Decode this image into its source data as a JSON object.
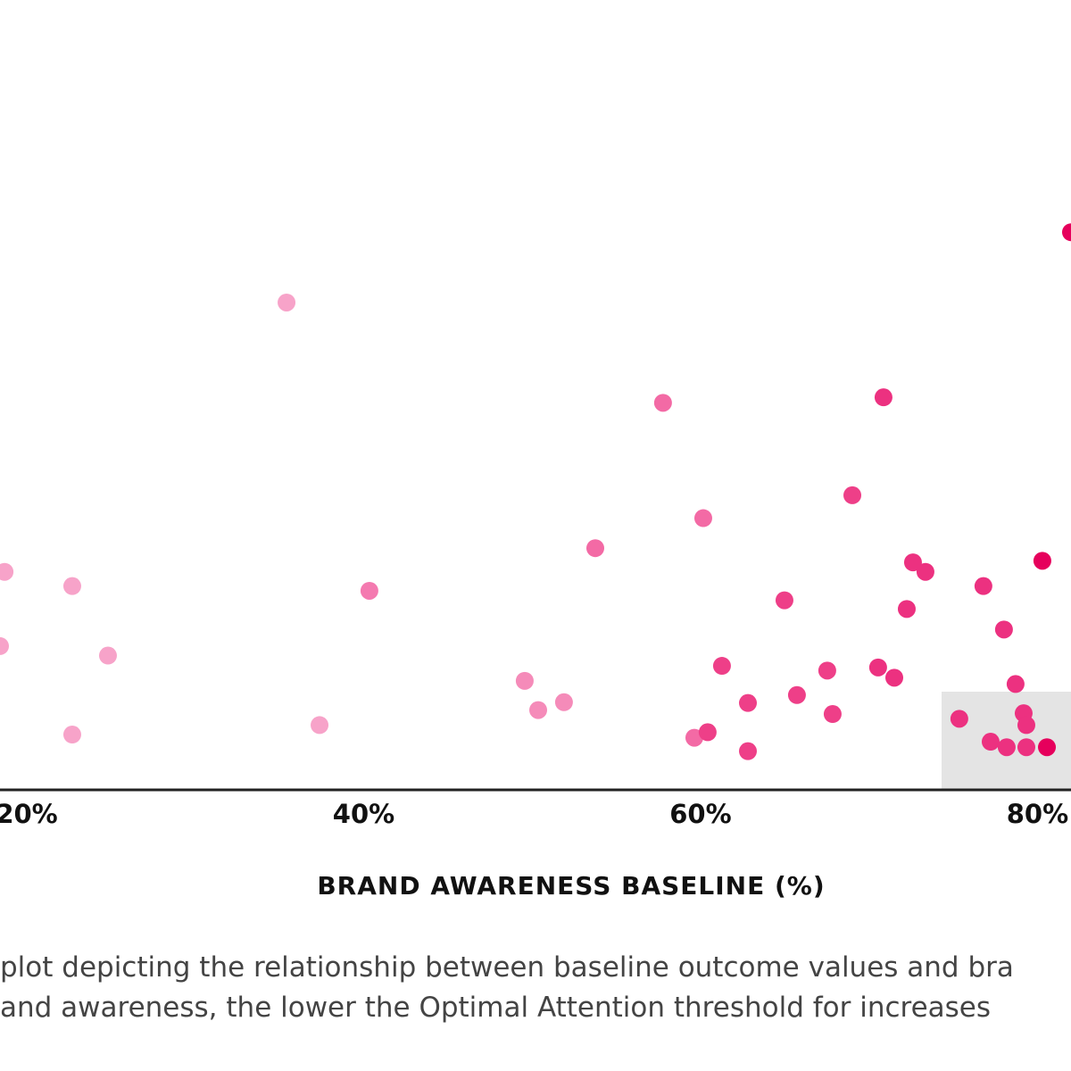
{
  "chart_data": {
    "type": "scatter",
    "x_label": "BRAND AWARENESS BASELINE (%)",
    "caption": [
      "plot depicting the relationship between baseline outcome values and bra",
      "and awareness, the lower the Optimal Attention threshold for increases"
    ],
    "x": [
      18.68,
      18.41,
      22.7,
      24.82,
      22.7,
      35.42,
      37.38,
      40.34,
      49.56,
      50.36,
      51.89,
      53.75,
      57.77,
      60.16,
      59.63,
      60.42,
      61.27,
      62.81,
      62.81,
      64.98,
      65.72,
      67.52,
      67.84,
      69.01,
      70.86,
      70.54,
      71.5,
      72.24,
      72.61,
      73.35,
      75.36,
      76.79,
      77.22,
      78.01,
      78.17,
      78.7,
      79.18,
      79.34,
      79.34,
      80.29,
      80.56,
      81.99
    ],
    "values": [
      27.6,
      18.2,
      25.8,
      17.0,
      7.0,
      61.7,
      8.2,
      25.2,
      13.8,
      10.1,
      11.1,
      30.6,
      49.0,
      34.4,
      6.6,
      7.3,
      15.7,
      11.0,
      4.9,
      24.0,
      12.0,
      15.1,
      9.6,
      37.3,
      49.7,
      15.5,
      14.2,
      22.9,
      28.8,
      27.6,
      9.0,
      25.8,
      6.1,
      20.3,
      5.4,
      13.4,
      9.7,
      8.2,
      5.4,
      29.0,
      5.4,
      70.6
    ],
    "colors": [
      "#f7a3c9",
      "#f7a3c9",
      "#f7a3c9",
      "#f7a3c9",
      "#f7a3c9",
      "#f7a3c9",
      "#f7a3c9",
      "#f47ab0",
      "#f58bb9",
      "#f58bb9",
      "#f58bb9",
      "#f36aa5",
      "#f36aa5",
      "#f36aa5",
      "#f36aa5",
      "#ee3f88",
      "#ee3f88",
      "#ee3f88",
      "#ee3f88",
      "#ee3f88",
      "#ee3f88",
      "#ee3f88",
      "#ee3f88",
      "#ee3f88",
      "#ec3180",
      "#ec3180",
      "#ec3180",
      "#ec3180",
      "#ec3180",
      "#ec3180",
      "#ec3180",
      "#ec3180",
      "#ec3180",
      "#ec3180",
      "#ec3180",
      "#ec3180",
      "#ec3180",
      "#ec3180",
      "#ec3180",
      "#e6005c",
      "#e6005c",
      "#e6005c"
    ],
    "xlim": [
      18.41,
      81.99
    ],
    "ylim": [
      0,
      100
    ],
    "xticks": [
      {
        "value": 20,
        "label": "20%"
      },
      {
        "value": 40,
        "label": "40%"
      },
      {
        "value": 60,
        "label": "60%"
      },
      {
        "value": 80,
        "label": "80%"
      }
    ]
  }
}
